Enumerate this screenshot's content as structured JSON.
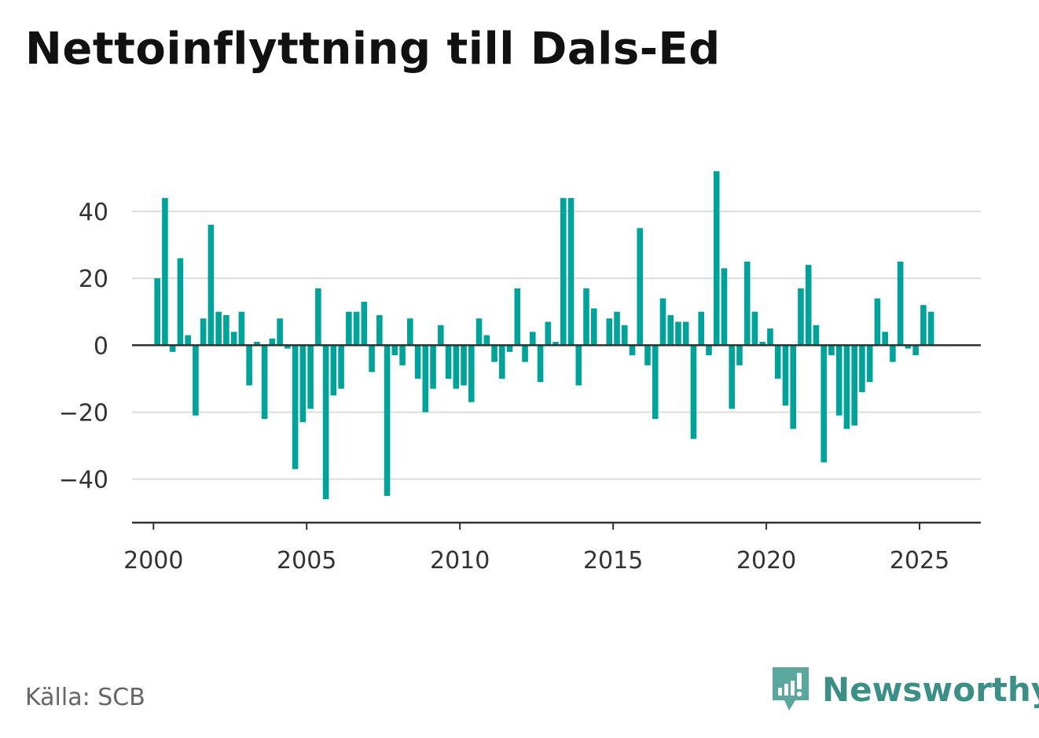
{
  "header": {
    "title": "Nettoinflyttning till Dals-Ed"
  },
  "footer": {
    "source": "Källa: SCB",
    "brand": "Newsworthy"
  },
  "colors": {
    "bar": "#00a39a",
    "grid": "#dddddd",
    "zero": "#333333",
    "brand": "#3b8f87"
  },
  "chart_data": {
    "type": "bar",
    "title": "Nettoinflyttning till Dals-Ed",
    "xlabel": "",
    "ylabel": "",
    "x_ticks": [
      2000,
      2005,
      2010,
      2015,
      2020,
      2025
    ],
    "y_ticks": [
      -40,
      -20,
      0,
      20,
      40
    ],
    "y_tick_labels": [
      "−40",
      "−20",
      "0",
      "20",
      "40"
    ],
    "xlim": [
      1999.3,
      2027.0
    ],
    "ylim": [
      -53,
      55
    ],
    "grid": true,
    "series": [
      {
        "start_year": 2000,
        "frequency": "quarterly",
        "values": [
          20,
          44,
          -2,
          26,
          3,
          -21,
          8,
          36,
          10,
          9,
          4,
          10,
          -12,
          1,
          -22,
          2,
          8,
          -1,
          -37,
          -23,
          -19,
          17,
          -46,
          -15,
          -13,
          10,
          10,
          13,
          -8,
          9,
          -45,
          -3,
          -6,
          8,
          -10,
          -20,
          -13,
          6,
          -10,
          -13,
          -12,
          -17,
          8,
          3,
          -5,
          -10,
          -2,
          17,
          -5,
          4,
          -11,
          7,
          1,
          44,
          44,
          -12,
          17,
          11,
          0,
          8,
          10,
          6,
          -3,
          35,
          -6,
          -22,
          14,
          9,
          7,
          7,
          -28,
          10,
          -3,
          52,
          23,
          -19,
          -6,
          25,
          10,
          1,
          5,
          -10,
          -18,
          -25,
          17,
          24,
          6,
          -35,
          -3,
          -21,
          -25,
          -24,
          -14,
          -11,
          14,
          4,
          -5,
          25,
          -1,
          -3,
          12,
          10
        ]
      }
    ]
  }
}
